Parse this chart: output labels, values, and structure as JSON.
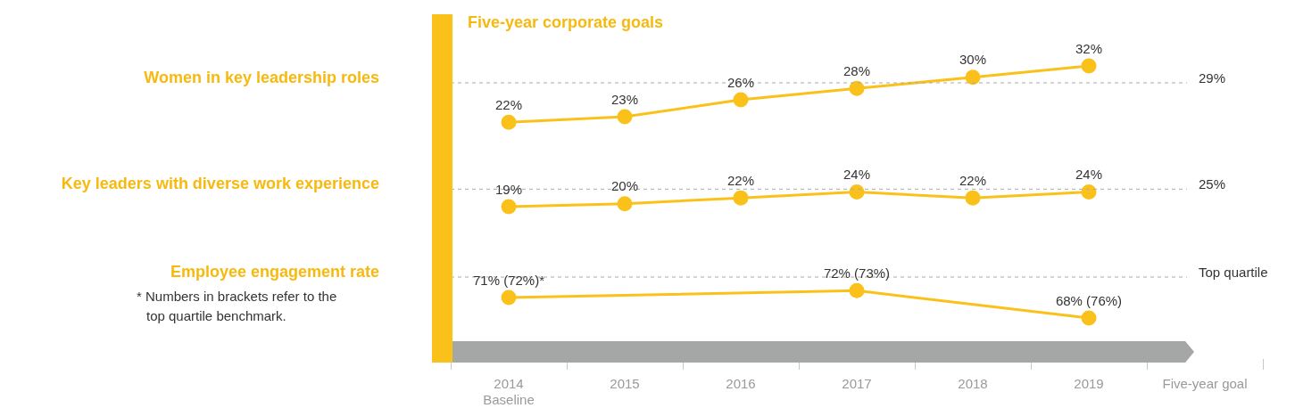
{
  "chart_data": [
    {
      "type": "line",
      "title": "Five-year corporate goals",
      "ylabel": "Women in key leadership roles",
      "categories": [
        null,
        null,
        null,
        null,
        null,
        null,
        null
      ],
      "series": [
        {
          "color": "#fbc11b",
          "values": [
            22,
            23,
            26,
            28,
            30,
            32,
            null
          ],
          "value_labels": [
            "22%",
            "23%",
            "26%",
            "28%",
            "30%",
            "32%",
            null
          ]
        }
      ],
      "ref_lines": [
        {
          "axis": "y",
          "value": 29,
          "label": "29%",
          "color": "#aaaaaa",
          "line_style": "dashed"
        }
      ],
      "marker": "circle",
      "line_style": "solid",
      "tick_labels": false
    },
    {
      "type": "line",
      "ylabel": "Key leaders with diverse work experience",
      "categories": [
        null,
        null,
        null,
        null,
        null,
        null,
        null
      ],
      "series": [
        {
          "color": "#fbc11b",
          "values": [
            19,
            20,
            22,
            24,
            22,
            24,
            null
          ],
          "value_labels": [
            "19%",
            "20%",
            "22%",
            "24%",
            "22%",
            "24%",
            null
          ]
        }
      ],
      "ref_lines": [
        {
          "axis": "y",
          "value": 25,
          "label": "25%",
          "color": "#aaaaaa",
          "line_style": "dashed"
        }
      ],
      "marker": "circle",
      "line_style": "solid",
      "tick_labels": false
    },
    {
      "type": "line",
      "ylabel": "Employee engagement rate",
      "categories": [
        "2014\nBaseline",
        "2015",
        "2016",
        "2017",
        "2018",
        "2019",
        "Five-year goal"
      ],
      "series": [
        {
          "color": "#fbc11b",
          "values": [
            71,
            null,
            null,
            72,
            null,
            68,
            null
          ],
          "value_labels": [
            "71% (72%)*",
            null,
            null,
            "72% (73%)",
            null,
            "68% (76%)",
            null
          ]
        }
      ],
      "ref_lines": [
        {
          "axis": "y",
          "value": 74,
          "label": "Top quartile",
          "color": "#aaaaaa",
          "line_style": "dashed"
        }
      ],
      "annotations": [
        "* Numbers in brackets refer to the top quartile benchmark."
      ],
      "marker": "circle",
      "line_style": "solid",
      "tick_labels": "x"
    }
  ]
}
